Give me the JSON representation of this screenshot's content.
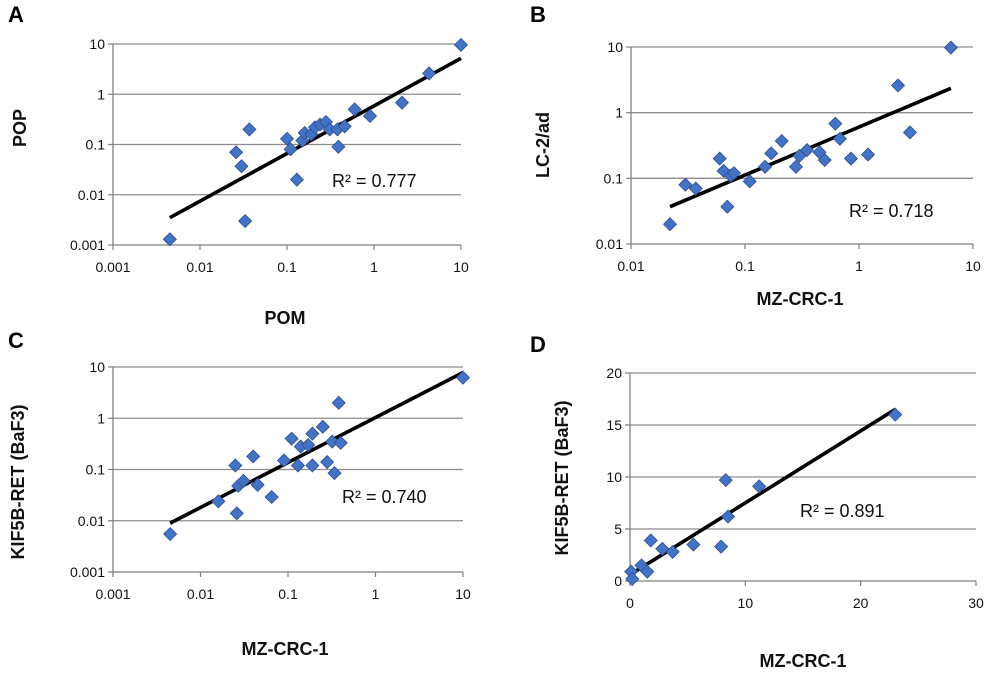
{
  "chart_data": [
    {
      "panel": "A",
      "type": "scatter",
      "xlabel": "POM",
      "ylabel": "POP",
      "xscale": "log",
      "yscale": "log",
      "xlim": [
        0.001,
        10
      ],
      "ylim": [
        0.001,
        10
      ],
      "x_ticks": [
        "0.001",
        "0.01",
        "0.1",
        "1",
        "10"
      ],
      "y_ticks": [
        "0.001",
        "0.01",
        "0.1",
        "1",
        "10"
      ],
      "grid": "horizontal",
      "annotation": "R² = 0.777",
      "marker_color": "#4472c4",
      "trendline": {
        "x": [
          0.0045,
          10
        ],
        "y": [
          0.0035,
          5.2
        ]
      },
      "points": [
        {
          "x": 0.0045,
          "y": 0.0013
        },
        {
          "x": 0.026,
          "y": 0.07
        },
        {
          "x": 0.03,
          "y": 0.037
        },
        {
          "x": 0.033,
          "y": 0.003
        },
        {
          "x": 0.037,
          "y": 0.2
        },
        {
          "x": 0.1,
          "y": 0.13
        },
        {
          "x": 0.11,
          "y": 0.08
        },
        {
          "x": 0.13,
          "y": 0.02
        },
        {
          "x": 0.15,
          "y": 0.12
        },
        {
          "x": 0.16,
          "y": 0.17
        },
        {
          "x": 0.19,
          "y": 0.16
        },
        {
          "x": 0.21,
          "y": 0.22
        },
        {
          "x": 0.24,
          "y": 0.25
        },
        {
          "x": 0.28,
          "y": 0.28
        },
        {
          "x": 0.31,
          "y": 0.2
        },
        {
          "x": 0.38,
          "y": 0.2
        },
        {
          "x": 0.39,
          "y": 0.09
        },
        {
          "x": 0.46,
          "y": 0.23
        },
        {
          "x": 0.6,
          "y": 0.5
        },
        {
          "x": 0.9,
          "y": 0.37
        },
        {
          "x": 2.1,
          "y": 0.68
        },
        {
          "x": 4.3,
          "y": 2.6
        },
        {
          "x": 10,
          "y": 9.6
        }
      ]
    },
    {
      "panel": "B",
      "type": "scatter",
      "xlabel": "MZ-CRC-1",
      "ylabel": "LC-2/ad",
      "xscale": "log",
      "yscale": "log",
      "xlim": [
        0.01,
        10
      ],
      "ylim": [
        0.01,
        10
      ],
      "x_ticks": [
        "0.01",
        "0.1",
        "1",
        "10"
      ],
      "y_ticks": [
        "0.01",
        "0.1",
        "1",
        "10"
      ],
      "grid": "horizontal",
      "annotation": "R² = 0.718",
      "marker_color": "#4472c4",
      "trendline": {
        "x": [
          0.022,
          6.4
        ],
        "y": [
          0.037,
          2.35
        ]
      },
      "points": [
        {
          "x": 0.022,
          "y": 0.02
        },
        {
          "x": 0.03,
          "y": 0.08
        },
        {
          "x": 0.037,
          "y": 0.07
        },
        {
          "x": 0.06,
          "y": 0.2
        },
        {
          "x": 0.065,
          "y": 0.13
        },
        {
          "x": 0.07,
          "y": 0.037
        },
        {
          "x": 0.075,
          "y": 0.11
        },
        {
          "x": 0.08,
          "y": 0.12
        },
        {
          "x": 0.11,
          "y": 0.09
        },
        {
          "x": 0.15,
          "y": 0.15
        },
        {
          "x": 0.17,
          "y": 0.24
        },
        {
          "x": 0.21,
          "y": 0.37
        },
        {
          "x": 0.28,
          "y": 0.15
        },
        {
          "x": 0.3,
          "y": 0.22
        },
        {
          "x": 0.35,
          "y": 0.27
        },
        {
          "x": 0.45,
          "y": 0.25
        },
        {
          "x": 0.5,
          "y": 0.19
        },
        {
          "x": 0.62,
          "y": 0.68
        },
        {
          "x": 0.68,
          "y": 0.4
        },
        {
          "x": 0.85,
          "y": 0.2
        },
        {
          "x": 1.2,
          "y": 0.23
        },
        {
          "x": 2.2,
          "y": 2.6
        },
        {
          "x": 2.8,
          "y": 0.5
        },
        {
          "x": 6.4,
          "y": 9.8
        }
      ]
    },
    {
      "panel": "C",
      "type": "scatter",
      "xlabel": "MZ-CRC-1",
      "ylabel": "KIF5B-RET (BaF3)",
      "xscale": "log",
      "yscale": "log",
      "xlim": [
        0.001,
        10
      ],
      "ylim": [
        0.001,
        10
      ],
      "x_ticks": [
        "0.001",
        "0.01",
        "0.1",
        "1",
        "10"
      ],
      "y_ticks": [
        "0.001",
        "0.01",
        "0.1",
        "1",
        "10"
      ],
      "grid": "horizontal",
      "annotation": "R² = 0.740",
      "marker_color": "#4472c4",
      "trendline": {
        "x": [
          0.0045,
          10
        ],
        "y": [
          0.009,
          7.8
        ]
      },
      "points": [
        {
          "x": 0.0045,
          "y": 0.0055
        },
        {
          "x": 0.016,
          "y": 0.024
        },
        {
          "x": 0.025,
          "y": 0.12
        },
        {
          "x": 0.026,
          "y": 0.014
        },
        {
          "x": 0.027,
          "y": 0.048
        },
        {
          "x": 0.031,
          "y": 0.06
        },
        {
          "x": 0.04,
          "y": 0.18
        },
        {
          "x": 0.045,
          "y": 0.05
        },
        {
          "x": 0.065,
          "y": 0.029
        },
        {
          "x": 0.09,
          "y": 0.15
        },
        {
          "x": 0.11,
          "y": 0.4
        },
        {
          "x": 0.13,
          "y": 0.12
        },
        {
          "x": 0.14,
          "y": 0.28
        },
        {
          "x": 0.17,
          "y": 0.3
        },
        {
          "x": 0.19,
          "y": 0.5
        },
        {
          "x": 0.19,
          "y": 0.12
        },
        {
          "x": 0.25,
          "y": 0.68
        },
        {
          "x": 0.28,
          "y": 0.14
        },
        {
          "x": 0.32,
          "y": 0.35
        },
        {
          "x": 0.34,
          "y": 0.085
        },
        {
          "x": 0.38,
          "y": 2.0
        },
        {
          "x": 0.4,
          "y": 0.33
        },
        {
          "x": 10,
          "y": 6.2
        }
      ]
    },
    {
      "panel": "D",
      "type": "scatter",
      "xlabel": "MZ-CRC-1",
      "ylabel": "KIF5B-RET (BaF3)",
      "xscale": "linear",
      "yscale": "linear",
      "xlim": [
        0,
        30
      ],
      "ylim": [
        0,
        20
      ],
      "x_ticks": [
        "0",
        "10",
        "20",
        "30"
      ],
      "y_ticks": [
        "0",
        "5",
        "10",
        "15",
        "20"
      ],
      "grid": "horizontal",
      "annotation": "R² = 0.891",
      "marker_color": "#4472c4",
      "trendline": {
        "x": [
          0,
          23
        ],
        "y": [
          0.6,
          16.5
        ]
      },
      "points": [
        {
          "x": 0.1,
          "y": 0.9
        },
        {
          "x": 0.2,
          "y": 0.2
        },
        {
          "x": 1.0,
          "y": 1.5
        },
        {
          "x": 1.5,
          "y": 0.9
        },
        {
          "x": 1.8,
          "y": 3.9
        },
        {
          "x": 2.8,
          "y": 3.1
        },
        {
          "x": 3.7,
          "y": 2.8
        },
        {
          "x": 5.5,
          "y": 3.5
        },
        {
          "x": 7.9,
          "y": 3.3
        },
        {
          "x": 8.3,
          "y": 9.7
        },
        {
          "x": 8.5,
          "y": 6.2
        },
        {
          "x": 11.2,
          "y": 9.1
        },
        {
          "x": 23,
          "y": 16.0
        }
      ]
    }
  ]
}
